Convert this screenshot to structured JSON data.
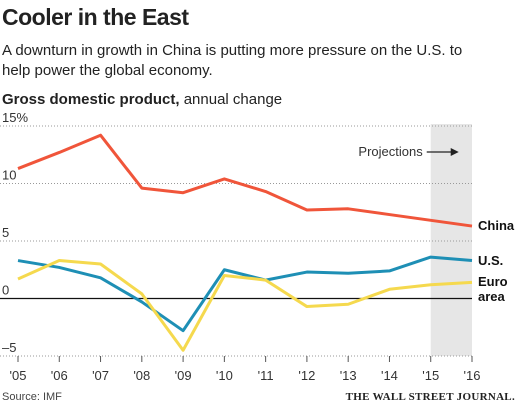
{
  "chart_data": {
    "type": "line",
    "title": "Cooler in the East",
    "subtitle": "A downturn in growth in China is putting more pressure on the U.S. to help power the global economy.",
    "ylabel_bold": "Gross domestic product,",
    "ylabel": "annual change",
    "categories": [
      "'05",
      "'06",
      "'07",
      "'08",
      "'09",
      "'10",
      "'11",
      "'12",
      "'13",
      "'14",
      "'15",
      "'16"
    ],
    "series": [
      {
        "name": "China",
        "color": "#f0553a",
        "values": [
          11.3,
          12.7,
          14.2,
          9.6,
          9.2,
          10.4,
          9.3,
          7.7,
          7.8,
          7.3,
          6.8,
          6.3
        ]
      },
      {
        "name": "U.S.",
        "color": "#1e8fb5",
        "values": [
          3.3,
          2.7,
          1.8,
          -0.3,
          -2.8,
          2.5,
          1.6,
          2.3,
          2.2,
          2.4,
          3.6,
          3.3
        ]
      },
      {
        "name": "Euro area",
        "color": "#f5d94e",
        "values": [
          1.7,
          3.3,
          3.0,
          0.4,
          -4.5,
          2.0,
          1.6,
          -0.7,
          -0.5,
          0.8,
          1.2,
          1.4
        ]
      }
    ],
    "ylim": [
      -5,
      15
    ],
    "yticks": [
      {
        "value": -5,
        "label": "–5"
      },
      0,
      5,
      10,
      {
        "value": 15,
        "label": "15%"
      }
    ],
    "grid": true,
    "projections": {
      "label": "Projections",
      "from": "'15",
      "to": "'16"
    },
    "source": "Source: IMF",
    "publisher": "THE WALL STREET JOURNAL."
  }
}
